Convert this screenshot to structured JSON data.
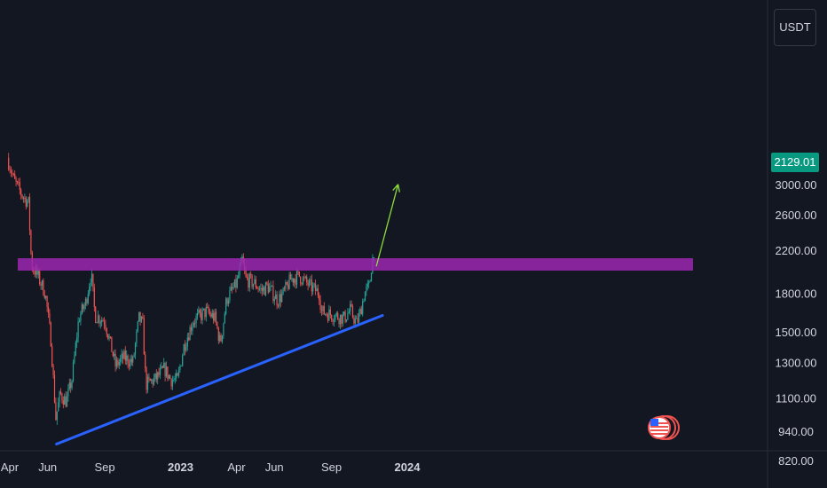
{
  "pair_currency": "USDT",
  "last_price": "2129.01",
  "colors": {
    "background": "#131722",
    "up": "#26a69a",
    "down": "#ef5350",
    "resistance": "#9c27b0",
    "support": "#2962ff",
    "arrow": "#8bdd3a",
    "badge": "#089981"
  },
  "chart_data": {
    "type": "candlestick",
    "y_scale": "log",
    "ylim": [
      790,
      3400
    ],
    "y_ticks": [
      "3000.00",
      "2600.00",
      "2200.00",
      "1800.00",
      "1500.00",
      "1300.00",
      "1100.00",
      "940.00",
      "820.00"
    ],
    "x_ticks": [
      "Apr",
      "Jun",
      "Sep",
      "2023",
      "Apr",
      "Jun",
      "Sep",
      "2024"
    ],
    "x_ticks_bold": [
      "2023",
      "2024"
    ],
    "price_path": [
      [
        "2022-04-01",
        3400
      ],
      [
        "2022-04-12",
        3050
      ],
      [
        "2022-04-25",
        2850
      ],
      [
        "2022-05-05",
        2750
      ],
      [
        "2022-05-10",
        2050
      ],
      [
        "2022-05-20",
        1950
      ],
      [
        "2022-06-01",
        1800
      ],
      [
        "2022-06-10",
        1450
      ],
      [
        "2022-06-18",
        1000
      ],
      [
        "2022-06-25",
        1120
      ],
      [
        "2022-07-05",
        1080
      ],
      [
        "2022-07-14",
        1200
      ],
      [
        "2022-07-25",
        1600
      ],
      [
        "2022-08-05",
        1720
      ],
      [
        "2022-08-14",
        1980
      ],
      [
        "2022-08-20",
        1620
      ],
      [
        "2022-09-05",
        1580
      ],
      [
        "2022-09-15",
        1400
      ],
      [
        "2022-09-22",
        1280
      ],
      [
        "2022-10-05",
        1330
      ],
      [
        "2022-10-20",
        1300
      ],
      [
        "2022-10-30",
        1600
      ],
      [
        "2022-11-05",
        1550
      ],
      [
        "2022-11-10",
        1170
      ],
      [
        "2022-11-25",
        1200
      ],
      [
        "2022-12-10",
        1260
      ],
      [
        "2022-12-20",
        1200
      ],
      [
        "2022-12-31",
        1195
      ],
      [
        "2023-01-10",
        1400
      ],
      [
        "2023-01-25",
        1580
      ],
      [
        "2023-02-15",
        1650
      ],
      [
        "2023-03-01",
        1600
      ],
      [
        "2023-03-10",
        1420
      ],
      [
        "2023-03-20",
        1750
      ],
      [
        "2023-04-05",
        1880
      ],
      [
        "2023-04-14",
        2100
      ],
      [
        "2023-04-20",
        1920
      ],
      [
        "2023-05-05",
        1880
      ],
      [
        "2023-05-15",
        1820
      ],
      [
        "2023-05-25",
        1860
      ],
      [
        "2023-06-10",
        1740
      ],
      [
        "2023-06-20",
        1800
      ],
      [
        "2023-07-01",
        1920
      ],
      [
        "2023-07-15",
        1950
      ],
      [
        "2023-08-01",
        1860
      ],
      [
        "2023-08-16",
        1800
      ],
      [
        "2023-08-20",
        1650
      ],
      [
        "2023-09-10",
        1620
      ],
      [
        "2023-09-25",
        1600
      ],
      [
        "2023-10-05",
        1660
      ],
      [
        "2023-10-15",
        1560
      ],
      [
        "2023-10-20",
        1620
      ],
      [
        "2023-10-28",
        1800
      ],
      [
        "2023-11-05",
        1860
      ],
      [
        "2023-11-09",
        2100
      ],
      [
        "2023-11-11",
        2129
      ]
    ],
    "resistance_zone": {
      "y_low": 2000,
      "y_high": 2120
    },
    "support_line": [
      [
        "2022-06-18",
        885
      ],
      [
        "2023-11-25",
        1620
      ]
    ],
    "projection_arrow": [
      [
        "2023-11-15",
        2040
      ],
      [
        "2023-12-20",
        3000
      ]
    ]
  }
}
